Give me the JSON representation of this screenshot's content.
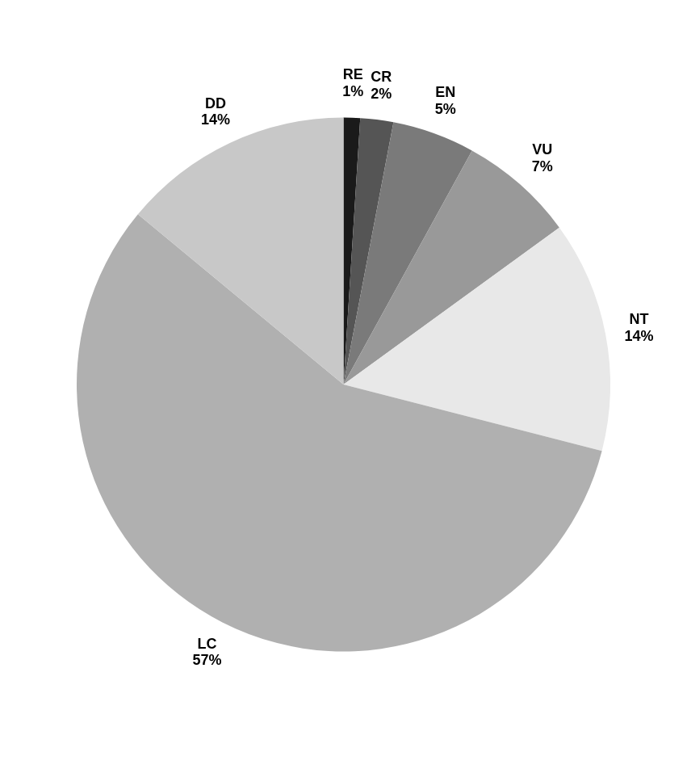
{
  "chart_data": {
    "type": "pie",
    "categories": [
      "RE",
      "CR",
      "EN",
      "VU",
      "NT",
      "LC",
      "DD"
    ],
    "values": [
      1,
      2,
      5,
      7,
      14,
      57,
      14
    ],
    "value_labels": [
      "1%",
      "2%",
      "5%",
      "7%",
      "14%",
      "57%",
      "14%"
    ],
    "colors": [
      "#1a1a1a",
      "#555555",
      "#7a7a7a",
      "#999999",
      "#e8e8e8",
      "#b0b0b0",
      "#c8c8c8"
    ],
    "data_labels": true
  }
}
